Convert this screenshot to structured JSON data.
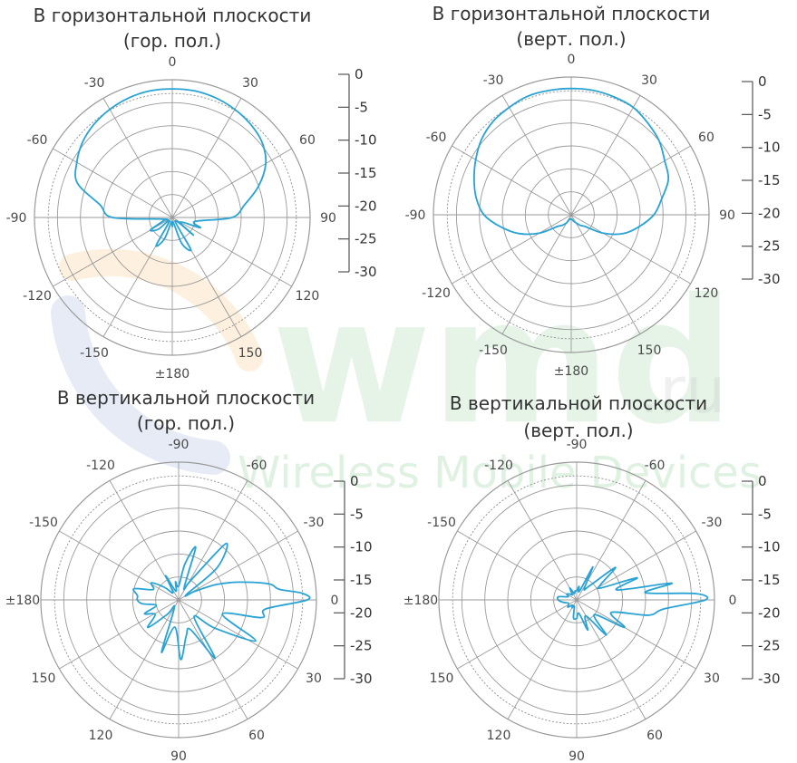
{
  "watermark": {
    "brand": "wmd",
    "suffix": ".ru",
    "tagline": "Wireless Mobile Devices",
    "colors": {
      "green": "#8fd19a",
      "orange": "#f7c98d",
      "blue": "#8fa6d8"
    }
  },
  "chart_data": [
    {
      "type": "polar",
      "title_lines": [
        "В горизонтальной плоскости",
        "(гор. пол.)"
      ],
      "angle_labels": [
        "0",
        "30",
        "60",
        "90",
        "120",
        "150",
        "±180",
        "-150",
        "-120",
        "-90",
        "-60",
        "-30"
      ],
      "scale_labels": [
        "0",
        "-5",
        "-10",
        "-15",
        "-20",
        "-25",
        "-30"
      ],
      "rlim": [
        -30,
        0
      ],
      "unit": "dB",
      "grid": true,
      "series_color": "#29a3d4",
      "pattern": {
        "angles_deg": [
          0,
          10,
          20,
          30,
          40,
          50,
          60,
          70,
          80,
          90,
          100,
          110,
          120,
          130,
          140,
          150,
          160,
          170,
          180,
          190,
          200,
          210,
          220,
          230,
          240,
          250,
          260,
          270,
          280,
          290,
          300,
          310,
          320,
          330,
          340,
          350,
          360
        ],
        "gain_db": [
          -2,
          -2,
          -2.3,
          -2.8,
          -3.5,
          -4.5,
          -6.5,
          -10,
          -14,
          -17,
          -25,
          -23.5,
          -28,
          -24,
          -29,
          -22,
          -24,
          -29,
          -28,
          -29,
          -25,
          -23,
          -29,
          -26,
          -24.5,
          -28,
          -28,
          -17,
          -14,
          -8,
          -6,
          -4.5,
          -3.5,
          -2.8,
          -2.3,
          -2,
          -2
        ]
      }
    },
    {
      "type": "polar",
      "title_lines": [
        "В горизонтальной плоскости",
        "(верт. пол.)"
      ],
      "angle_labels": [
        "0",
        "30",
        "60",
        "90",
        "120",
        "150",
        "±180",
        "-150",
        "-120",
        "-90",
        "-60",
        "-30"
      ],
      "scale_labels": [
        "0",
        "-5",
        "-10",
        "-15",
        "-20",
        "-25",
        "-30"
      ],
      "rlim": [
        -30,
        0
      ],
      "unit": "dB",
      "grid": true,
      "series_color": "#29a3d4",
      "pattern": {
        "angles_deg": [
          0,
          10,
          20,
          30,
          40,
          50,
          60,
          70,
          80,
          90,
          100,
          110,
          120,
          130,
          140,
          150,
          160,
          170,
          180,
          190,
          200,
          210,
          220,
          230,
          240,
          250,
          260,
          270,
          280,
          290,
          300,
          310,
          320,
          330,
          340,
          350,
          360
        ],
        "gain_db": [
          -2.5,
          -2.5,
          -2.7,
          -3,
          -4,
          -5,
          -6.5,
          -7.5,
          -10,
          -12,
          -15,
          -18,
          -22,
          -26,
          -27,
          -28,
          -28.5,
          -29,
          -29,
          -29,
          -29,
          -28,
          -27,
          -26,
          -22,
          -18,
          -14.5,
          -11,
          -9,
          -7.5,
          -6,
          -4.5,
          -3.5,
          -3,
          -2.5,
          -2.5,
          -2.5
        ]
      }
    },
    {
      "type": "polar",
      "title_lines": [
        "В вертикальной плоскости",
        "(гор. пол.)"
      ],
      "angle_labels": [
        "0",
        "-30",
        "-60",
        "-90",
        "-120",
        "-150",
        "±180",
        "150",
        "120",
        "90",
        "60",
        "30"
      ],
      "scale_labels": [
        "0",
        "-5",
        "-10",
        "-15",
        "-20",
        "-25",
        "-30"
      ],
      "rlim": [
        -30,
        0
      ],
      "unit": "dB",
      "grid": true,
      "series_color": "#29a3d4",
      "pattern": {
        "angles_deg": [
          0,
          3,
          6,
          10,
          16,
          22,
          28,
          34,
          40,
          50,
          58,
          66,
          72,
          80,
          90,
          100,
          108,
          118,
          128,
          138,
          148,
          158,
          166,
          174,
          180,
          186,
          194,
          202,
          212,
          222,
          232,
          242,
          252,
          262,
          272,
          282,
          292,
          302,
          312,
          322,
          332,
          342,
          348,
          354,
          360
        ],
        "gain_db": [
          -2,
          -3,
          -8,
          -10,
          -16,
          -21,
          -26,
          -28,
          -19,
          -14,
          -25,
          -27,
          -18,
          -22,
          -27,
          -26,
          -28,
          -24,
          -28,
          -26,
          -23,
          -24,
          -20,
          -21,
          -21,
          -22,
          -25,
          -22,
          -24,
          -21,
          -26,
          -28,
          -18,
          -24,
          -17,
          -22,
          -23,
          -15,
          -25,
          -20,
          -11,
          -20,
          -11.5,
          -11,
          -2
        ]
      }
    },
    {
      "type": "polar",
      "title_lines": [
        "В вертикальной плоскости",
        "(верт. пол.)"
      ],
      "angle_labels": [
        "0",
        "-30",
        "-60",
        "-90",
        "-120",
        "-150",
        "±180",
        "150",
        "120",
        "90",
        "60",
        "30"
      ],
      "scale_labels": [
        "0",
        "-5",
        "-10",
        "-15",
        "-20",
        "-25",
        "-30"
      ],
      "rlim": [
        -30,
        0
      ],
      "unit": "dB",
      "grid": true,
      "series_color": "#29a3d4",
      "pattern": {
        "angles_deg": [
          0,
          3,
          6,
          10,
          14,
          20,
          26,
          32,
          40,
          48,
          56,
          64,
          72,
          80,
          90,
          100,
          110,
          120,
          130,
          140,
          150,
          160,
          170,
          180,
          190,
          200,
          210,
          220,
          230,
          240,
          250,
          260,
          270,
          280,
          290,
          300,
          310,
          320,
          330,
          340,
          348,
          354,
          360
        ],
        "gain_db": [
          -2,
          -4,
          -15,
          -9,
          -21,
          -16,
          -24,
          -24,
          -19,
          -26,
          -27,
          -22,
          -28,
          -27,
          -28,
          -28,
          -28.5,
          -27,
          -28.5,
          -28,
          -27.5,
          -28,
          -26,
          -26,
          -27,
          -28,
          -28,
          -27.5,
          -28.5,
          -28,
          -28.5,
          -26,
          -26,
          -27,
          -23,
          -26,
          -20,
          -25,
          -18,
          -22,
          -14,
          -11,
          -2
        ]
      }
    }
  ]
}
